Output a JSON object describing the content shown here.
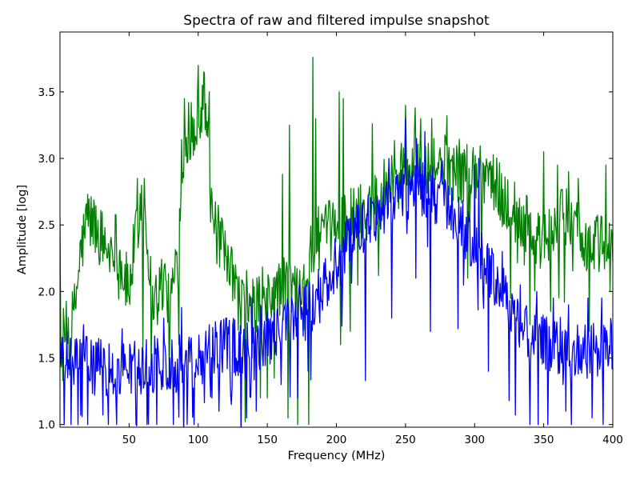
{
  "chart_data": {
    "type": "line",
    "title": "Spectra of raw and filtered impulse snapshot",
    "xlabel": "Frequency (MHz)",
    "ylabel": "Amplitude [log]",
    "xlim": [
      0,
      400
    ],
    "ylim": [
      0.98,
      3.95
    ],
    "x_ticks": [
      50,
      100,
      150,
      200,
      250,
      300,
      350,
      400
    ],
    "y_ticks": [
      1.0,
      1.5,
      2.0,
      2.5,
      3.0,
      3.5
    ],
    "grid": false,
    "legend": null,
    "x_step": 0.5,
    "series": [
      {
        "color": "#008000",
        "anchors": [
          [
            0,
            1.6
          ],
          [
            10,
            1.8
          ],
          [
            15,
            2.3
          ],
          [
            20,
            2.55
          ],
          [
            25,
            2.5
          ],
          [
            30,
            2.4
          ],
          [
            35,
            2.3
          ],
          [
            40,
            2.4
          ],
          [
            45,
            2.15
          ],
          [
            50,
            2.0
          ],
          [
            55,
            2.45
          ],
          [
            58,
            2.7
          ],
          [
            62,
            2.6
          ],
          [
            66,
            2.0
          ],
          [
            70,
            1.95
          ],
          [
            75,
            2.1
          ],
          [
            80,
            1.9
          ],
          [
            85,
            2.3
          ],
          [
            88,
            3.0
          ],
          [
            92,
            3.2
          ],
          [
            96,
            3.15
          ],
          [
            100,
            3.3
          ],
          [
            104,
            3.5
          ],
          [
            107,
            3.2
          ],
          [
            110,
            2.5
          ],
          [
            115,
            2.4
          ],
          [
            120,
            2.2
          ],
          [
            125,
            2.1
          ],
          [
            130,
            1.9
          ],
          [
            135,
            1.95
          ],
          [
            140,
            1.85
          ],
          [
            145,
            2.0
          ],
          [
            150,
            1.9
          ],
          [
            155,
            2.0
          ],
          [
            160,
            2.0
          ],
          [
            165,
            2.05
          ],
          [
            170,
            2.0
          ],
          [
            175,
            2.15
          ],
          [
            180,
            2.2
          ],
          [
            185,
            2.4
          ],
          [
            190,
            2.4
          ],
          [
            195,
            2.45
          ],
          [
            200,
            2.5
          ],
          [
            210,
            2.55
          ],
          [
            220,
            2.6
          ],
          [
            230,
            2.7
          ],
          [
            240,
            2.9
          ],
          [
            250,
            2.95
          ],
          [
            260,
            3.0
          ],
          [
            270,
            2.95
          ],
          [
            280,
            2.95
          ],
          [
            290,
            2.9
          ],
          [
            300,
            2.9
          ],
          [
            310,
            2.9
          ],
          [
            320,
            2.7
          ],
          [
            330,
            2.6
          ],
          [
            340,
            2.45
          ],
          [
            350,
            2.35
          ],
          [
            360,
            2.5
          ],
          [
            370,
            2.6
          ],
          [
            380,
            2.35
          ],
          [
            390,
            2.35
          ],
          [
            400,
            2.3
          ]
        ],
        "noise": 0.24,
        "spikes": [
          [
            100,
            3.7
          ],
          [
            104,
            3.65
          ],
          [
            108,
            3.5
          ],
          [
            90,
            3.45
          ],
          [
            93,
            3.42
          ],
          [
            95,
            3.42
          ],
          [
            56,
            2.85
          ],
          [
            61,
            2.85
          ],
          [
            20,
            2.73
          ],
          [
            166,
            3.25
          ],
          [
            172,
            3.2
          ],
          [
            183,
            3.76
          ],
          [
            185,
            3.3
          ],
          [
            202,
            3.5
          ],
          [
            205,
            3.45
          ],
          [
            226,
            3.26
          ],
          [
            250,
            3.4
          ],
          [
            257,
            3.38
          ],
          [
            261,
            3.3
          ],
          [
            269,
            3.3
          ],
          [
            280,
            3.32
          ],
          [
            295,
            3.33
          ],
          [
            350,
            3.05
          ],
          [
            360,
            2.95
          ],
          [
            368,
            2.9
          ],
          [
            375,
            2.85
          ],
          [
            395,
            2.95
          ],
          [
            161,
            2.88
          ],
          [
            0,
            2.55
          ]
        ],
        "dips": [
          [
            134,
            1.02
          ],
          [
            165,
            1.05
          ],
          [
            172,
            1.0
          ],
          [
            180,
            1.0
          ],
          [
            60,
            1.5
          ],
          [
            66,
            1.4
          ],
          [
            79,
            1.3
          ],
          [
            86,
            1.6
          ],
          [
            139,
            1.5
          ],
          [
            145,
            1.2
          ],
          [
            150,
            1.2
          ],
          [
            155,
            1.35
          ],
          [
            203,
            1.6
          ],
          [
            210,
            1.7
          ],
          [
            295,
            2.1
          ],
          [
            305,
            2.2
          ],
          [
            340,
            1.75
          ],
          [
            355,
            1.85
          ],
          [
            365,
            1.92
          ],
          [
            383,
            1.7
          ],
          [
            398,
            2.0
          ]
        ]
      },
      {
        "color": "#0000ff",
        "anchors": [
          [
            0,
            1.5
          ],
          [
            20,
            1.45
          ],
          [
            40,
            1.4
          ],
          [
            60,
            1.45
          ],
          [
            80,
            1.45
          ],
          [
            100,
            1.5
          ],
          [
            120,
            1.6
          ],
          [
            140,
            1.55
          ],
          [
            160,
            1.7
          ],
          [
            180,
            1.9
          ],
          [
            190,
            2.0
          ],
          [
            200,
            2.2
          ],
          [
            210,
            2.4
          ],
          [
            220,
            2.5
          ],
          [
            230,
            2.6
          ],
          [
            240,
            2.7
          ],
          [
            250,
            2.75
          ],
          [
            260,
            2.8
          ],
          [
            270,
            2.75
          ],
          [
            280,
            2.6
          ],
          [
            290,
            2.5
          ],
          [
            300,
            2.3
          ],
          [
            310,
            2.15
          ],
          [
            320,
            2.0
          ],
          [
            330,
            1.8
          ],
          [
            340,
            1.65
          ],
          [
            350,
            1.6
          ],
          [
            360,
            1.6
          ],
          [
            370,
            1.55
          ],
          [
            380,
            1.55
          ],
          [
            390,
            1.55
          ],
          [
            400,
            1.6
          ]
        ],
        "noise": 0.22,
        "spikes": [
          [
            17,
            1.75
          ],
          [
            45,
            1.72
          ],
          [
            75,
            1.8
          ],
          [
            88,
            1.88
          ],
          [
            108,
            1.75
          ],
          [
            120,
            1.8
          ],
          [
            139,
            1.95
          ],
          [
            145,
            1.9
          ],
          [
            160,
            1.95
          ],
          [
            178,
            2.05
          ],
          [
            210,
            2.55
          ],
          [
            215,
            2.65
          ],
          [
            238,
            3.0
          ],
          [
            250,
            3.3
          ],
          [
            258,
            3.15
          ],
          [
            264,
            3.2
          ],
          [
            276,
            3.0
          ],
          [
            300,
            2.95
          ],
          [
            303,
            3.0
          ],
          [
            320,
            2.3
          ],
          [
            333,
            2.05
          ],
          [
            345,
            2.0
          ],
          [
            357,
            1.95
          ],
          [
            368,
            1.9
          ],
          [
            382,
            1.95
          ],
          [
            392,
            1.95
          ]
        ],
        "dips": [
          [
            3,
            1.0
          ],
          [
            8,
            1.0
          ],
          [
            13,
            1.0
          ],
          [
            20,
            1.0
          ],
          [
            35,
            1.0
          ],
          [
            41,
            1.0
          ],
          [
            55,
            1.0
          ],
          [
            63,
            1.0
          ],
          [
            70,
            1.0
          ],
          [
            82,
            1.0
          ],
          [
            92,
            1.0
          ],
          [
            97,
            1.0
          ],
          [
            110,
            1.2
          ],
          [
            115,
            1.1
          ],
          [
            124,
            1.15
          ],
          [
            135,
            1.05
          ],
          [
            142,
            1.1
          ],
          [
            160,
            1.3
          ],
          [
            172,
            1.2
          ],
          [
            221,
            1.33
          ],
          [
            240,
            1.8
          ],
          [
            268,
            1.7
          ],
          [
            288,
            1.72
          ],
          [
            310,
            1.4
          ],
          [
            325,
            1.18
          ],
          [
            340,
            1.0
          ],
          [
            346,
            1.0
          ],
          [
            353,
            1.0
          ],
          [
            366,
            1.1
          ],
          [
            370,
            1.0
          ],
          [
            385,
            1.05
          ],
          [
            393,
            1.0
          ]
        ]
      }
    ]
  }
}
